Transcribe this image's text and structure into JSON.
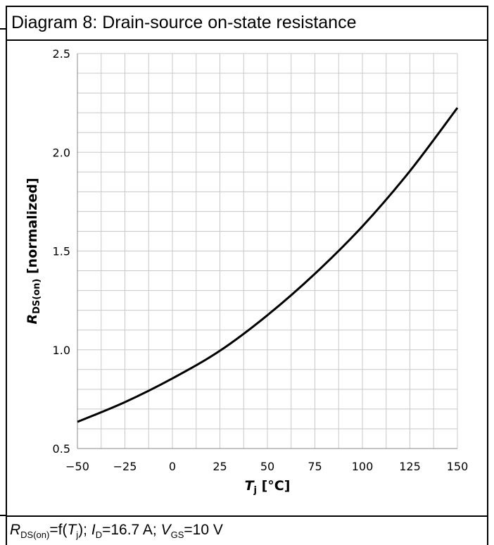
{
  "title": "Diagram 8: Drain-source on-state resistance",
  "caption": {
    "r_symbol": "R",
    "r_sub": "DS(on)",
    "eq_f": "=f(",
    "tj_symbol": "T",
    "tj_sub": "j",
    "after_tj": "); ",
    "id_symbol": "I",
    "id_sub": "D",
    "id_value": "=16.7 A; ",
    "vgs_symbol": "V",
    "vgs_sub": "GS",
    "vgs_value": "=10 V"
  },
  "chart_data": {
    "type": "line",
    "x": [
      -50,
      -25,
      0,
      25,
      50,
      75,
      100,
      125,
      150
    ],
    "series": [
      {
        "values": [
          0.635,
          0.735,
          0.855,
          0.995,
          1.175,
          1.385,
          1.625,
          1.905,
          2.225
        ]
      }
    ],
    "xlim": [
      -50,
      150
    ],
    "ylim": [
      0.5,
      2.5
    ],
    "xticks": [
      -50,
      -25,
      0,
      25,
      50,
      75,
      100,
      125,
      150
    ],
    "xtick_labels": [
      "−50",
      "−25",
      "0",
      "25",
      "50",
      "75",
      "100",
      "125",
      "150"
    ],
    "yticks": [
      0.5,
      1.0,
      1.5,
      2.0,
      2.5
    ],
    "ytick_labels": [
      "0.5",
      "1.0",
      "1.5",
      "2.0",
      "2.5"
    ],
    "xlabel": {
      "symbol": "T",
      "sub": "j",
      "unit": " [°C]"
    },
    "ylabel": {
      "symbol": "R",
      "sub": "DS(on)",
      "unit": " [normalized]"
    },
    "grid": true,
    "minor_grid_y_step": 0.1,
    "minor_grid_x_step": 12.5,
    "line_color": "#000000",
    "grid_color": "#c8c8c8"
  }
}
